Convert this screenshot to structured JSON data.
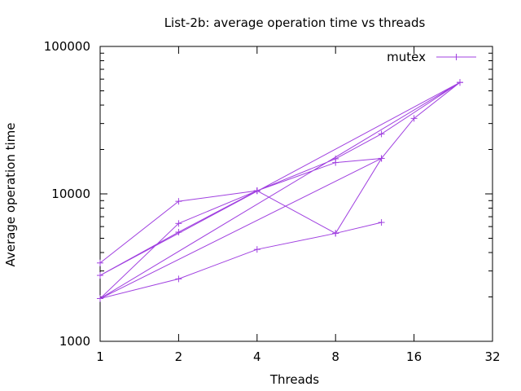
{
  "chart_data": {
    "type": "line",
    "title": "List-2b: average operation time vs threads",
    "xlabel": "Threads",
    "ylabel": "Average operation time",
    "xscale": "log2",
    "yscale": "log10",
    "xlim": [
      1,
      32
    ],
    "ylim": [
      1000,
      100000
    ],
    "xticks": [
      1,
      2,
      4,
      8,
      16,
      32
    ],
    "xtick_labels": [
      "1",
      "2",
      "4",
      "8",
      "16",
      "32"
    ],
    "yticks": [
      1000,
      10000,
      100000
    ],
    "ytick_labels": [
      "1000",
      "10000",
      "100000"
    ],
    "grid": false,
    "legend": "top-right",
    "series": [
      {
        "name": "mutex",
        "color": "#a040e0",
        "x": [
          1,
          2,
          4,
          8,
          12,
          24,
          1,
          2,
          4,
          8,
          12,
          1,
          2,
          4,
          8,
          12,
          16,
          24,
          1,
          2,
          4,
          8,
          12
        ],
        "y": [
          3400,
          8900,
          10500,
          17300,
          25500,
          57000,
          2800,
          5500,
          10500,
          16300,
          17400,
          1950,
          6300,
          10500,
          5400,
          17400,
          32500,
          57000,
          1950,
          2650,
          4200,
          5400,
          6400
        ]
      }
    ]
  }
}
